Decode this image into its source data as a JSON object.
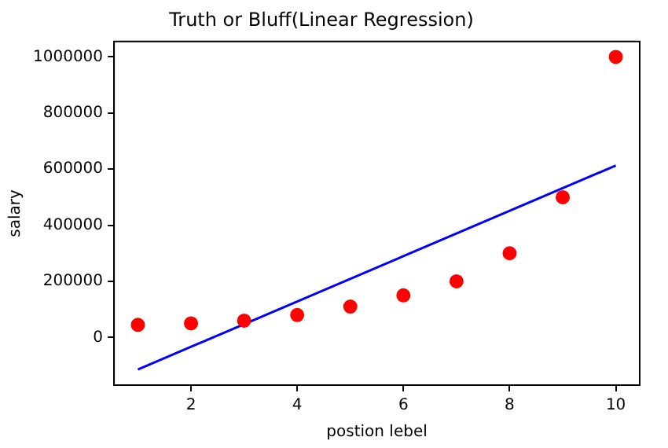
{
  "chart_data": {
    "type": "scatter",
    "title": "Truth or Bluff(Linear Regression)",
    "xlabel": "postion lebel",
    "ylabel": "salary",
    "x": [
      1,
      2,
      3,
      4,
      5,
      6,
      7,
      8,
      9,
      10
    ],
    "series": [
      {
        "type": "scatter",
        "marker": "circle",
        "color": "#ff0000",
        "values": [
          45000,
          50000,
          60000,
          80000,
          110000,
          150000,
          200000,
          300000,
          500000,
          1000000
        ]
      },
      {
        "type": "line",
        "marker": "none",
        "color": "#0000ff",
        "x": [
          1,
          10
        ],
        "values": [
          -114000,
          613000
        ]
      }
    ],
    "xlim": [
      0.55,
      10.45
    ],
    "ylim": [
      -170000,
      1055000
    ],
    "xticks": [
      2,
      4,
      6,
      8,
      10
    ],
    "yticks": [
      0,
      200000,
      400000,
      600000,
      800000,
      1000000
    ],
    "grid": false,
    "legend": false
  }
}
